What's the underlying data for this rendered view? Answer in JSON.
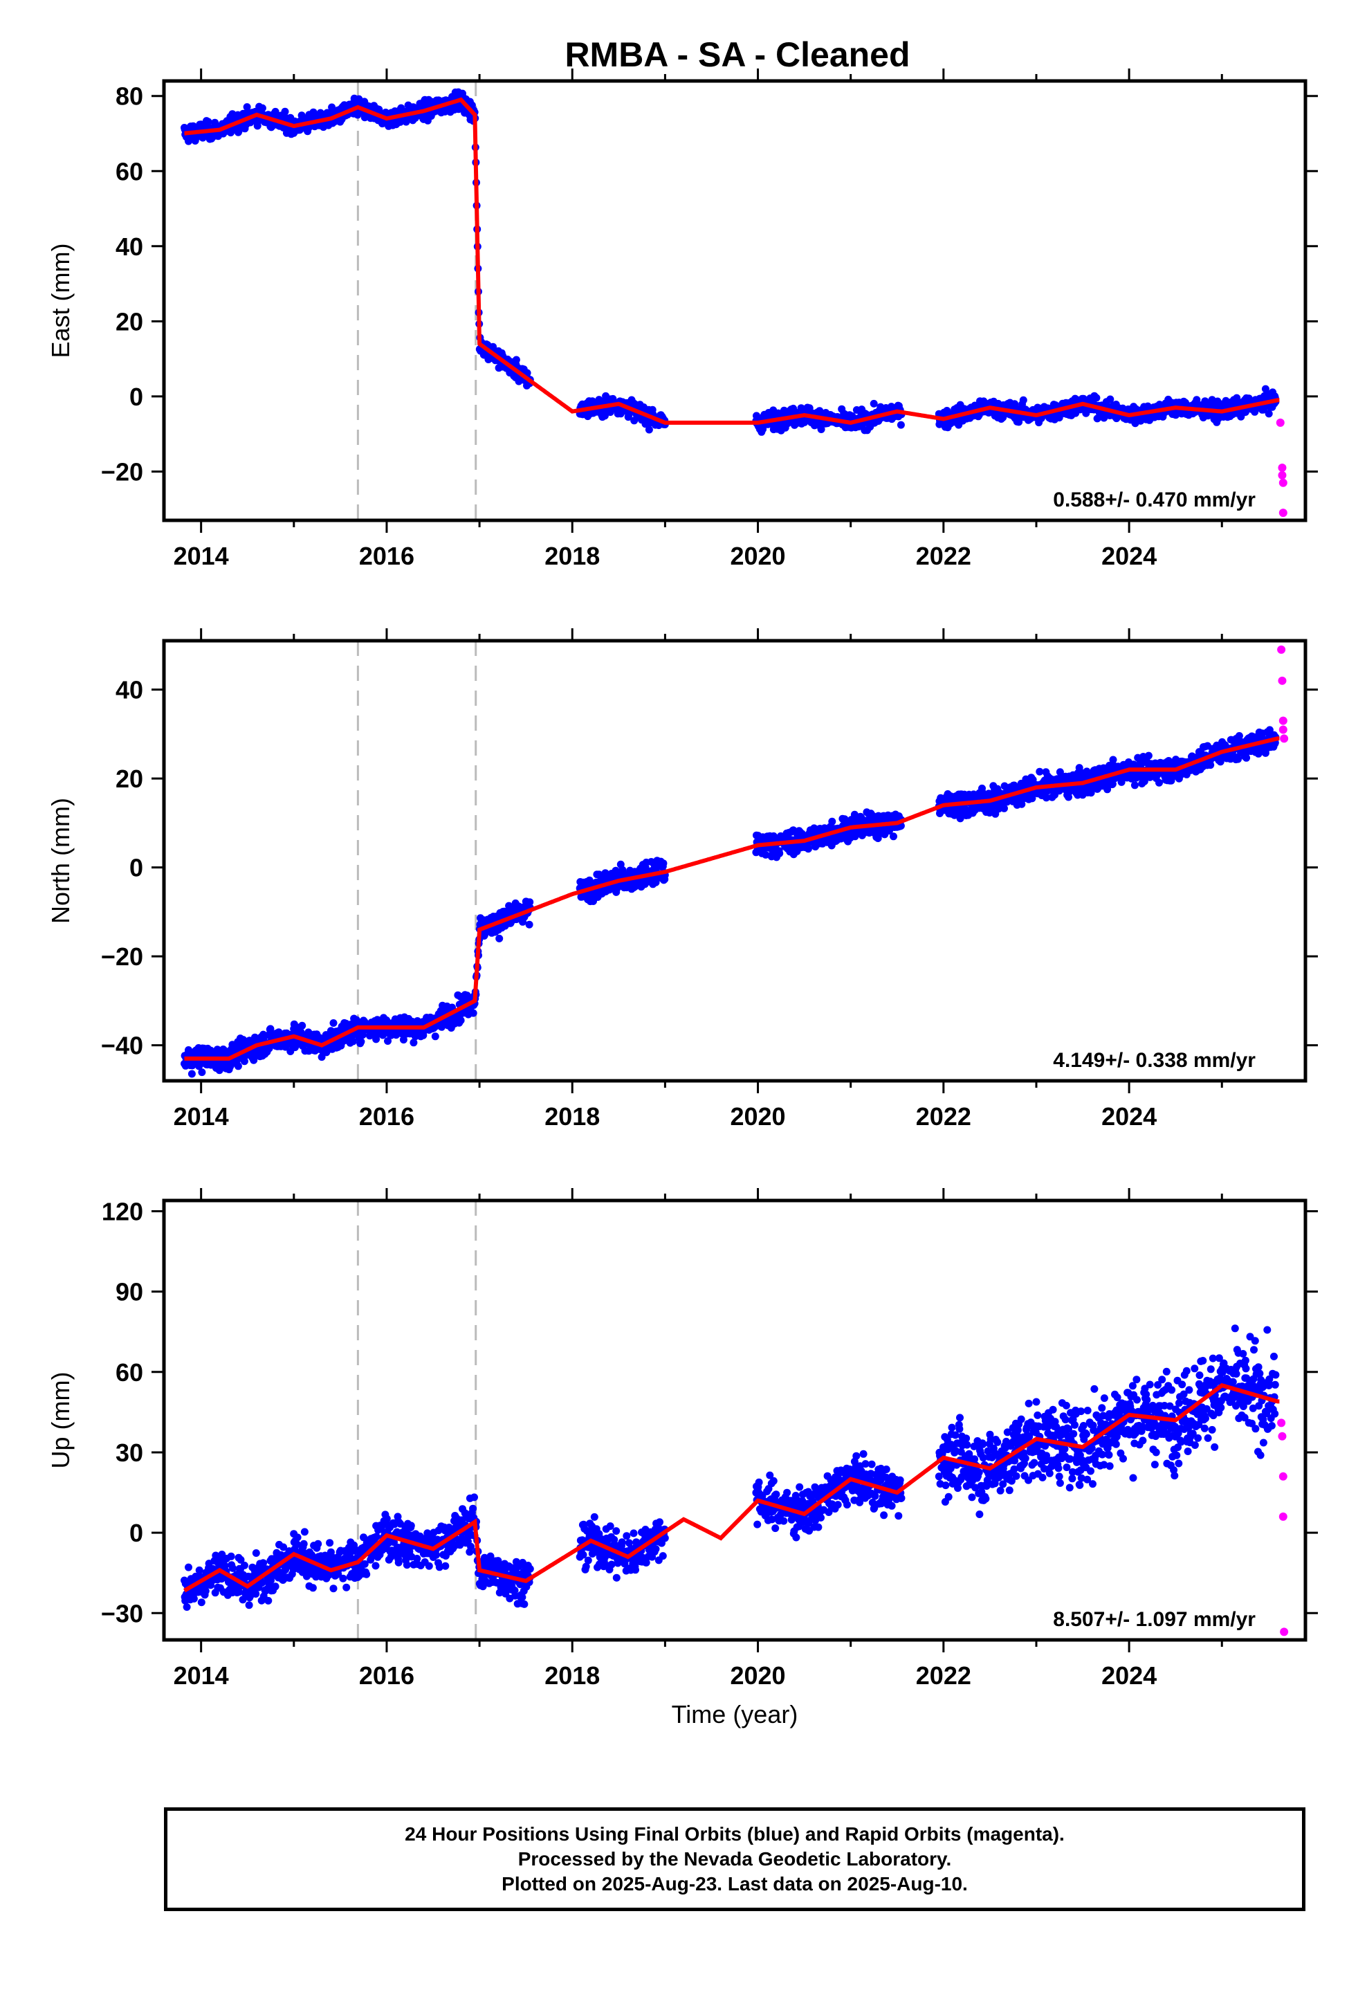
{
  "chart_data": [
    {
      "type": "scatter",
      "title": "RMBA  - SA - Cleaned",
      "xlabel": "",
      "ylabel": "East (mm)",
      "xlim": [
        2013.6,
        2025.9
      ],
      "ylim": [
        -33,
        84
      ],
      "xticks": [
        2014,
        2016,
        2018,
        2020,
        2022,
        2024
      ],
      "yticks": [
        -20,
        0,
        20,
        40,
        60,
        80
      ],
      "annotation": "0.588+/- 0.470 mm/yr",
      "breaks": [
        2015.69,
        2016.96
      ],
      "colors": {
        "final": "#0000ff",
        "rapid": "#ff00ff",
        "model": "#ff0000",
        "breaks": "#bbbbbb"
      },
      "series": [
        {
          "color_key": "final",
          "approx_points": [
            [
              2013.8,
              70
            ],
            [
              2014.2,
              71
            ],
            [
              2014.6,
              75
            ],
            [
              2015.0,
              72
            ],
            [
              2015.4,
              74
            ],
            [
              2015.69,
              77
            ],
            [
              2016.0,
              74
            ],
            [
              2016.4,
              76
            ],
            [
              2016.8,
              79
            ],
            [
              2016.95,
              75
            ],
            [
              2017.0,
              14
            ],
            [
              2017.5,
              5
            ],
            [
              2018.0,
              -4
            ],
            [
              2018.5,
              -2
            ],
            [
              2019.0,
              -7
            ],
            [
              2020.0,
              -7
            ],
            [
              2020.5,
              -5
            ],
            [
              2021.0,
              -7
            ],
            [
              2021.5,
              -4
            ],
            [
              2022.0,
              -6
            ],
            [
              2022.5,
              -3
            ],
            [
              2023.0,
              -5
            ],
            [
              2023.5,
              -2
            ],
            [
              2024.0,
              -5
            ],
            [
              2024.5,
              -3
            ],
            [
              2025.0,
              -4
            ],
            [
              2025.6,
              -1
            ]
          ]
        },
        {
          "color_key": "rapid",
          "points": [
            [
              2025.63,
              -7
            ],
            [
              2025.65,
              -19
            ],
            [
              2025.65,
              -21
            ],
            [
              2025.66,
              -23
            ],
            [
              2025.66,
              -31
            ]
          ]
        }
      ]
    },
    {
      "type": "scatter",
      "xlabel": "",
      "ylabel": "North (mm)",
      "xlim": [
        2013.6,
        2025.9
      ],
      "ylim": [
        -48,
        51
      ],
      "xticks": [
        2014,
        2016,
        2018,
        2020,
        2022,
        2024
      ],
      "yticks": [
        -40,
        -20,
        0,
        20,
        40
      ],
      "annotation": "4.149+/- 0.338 mm/yr",
      "breaks": [
        2015.69,
        2016.96
      ],
      "series": [
        {
          "color_key": "final",
          "approx_points": [
            [
              2013.8,
              -43
            ],
            [
              2014.3,
              -43
            ],
            [
              2014.6,
              -40
            ],
            [
              2015.0,
              -38
            ],
            [
              2015.3,
              -40
            ],
            [
              2015.69,
              -36
            ],
            [
              2016.0,
              -36
            ],
            [
              2016.4,
              -36
            ],
            [
              2016.95,
              -30
            ],
            [
              2017.0,
              -14
            ],
            [
              2017.5,
              -10
            ],
            [
              2018.0,
              -6
            ],
            [
              2018.5,
              -3
            ],
            [
              2019.0,
              -1
            ],
            [
              2020.0,
              5
            ],
            [
              2020.5,
              6
            ],
            [
              2021.0,
              9
            ],
            [
              2021.5,
              10
            ],
            [
              2022.0,
              14
            ],
            [
              2022.5,
              15
            ],
            [
              2023.0,
              18
            ],
            [
              2023.5,
              19
            ],
            [
              2024.0,
              22
            ],
            [
              2024.5,
              22
            ],
            [
              2025.0,
              26
            ],
            [
              2025.6,
              29
            ]
          ]
        },
        {
          "color_key": "rapid",
          "points": [
            [
              2025.64,
              49
            ],
            [
              2025.65,
              42
            ],
            [
              2025.66,
              33
            ],
            [
              2025.66,
              31
            ],
            [
              2025.67,
              29
            ]
          ]
        }
      ]
    },
    {
      "type": "scatter",
      "xlabel": "Time (year)",
      "ylabel": "Up (mm)",
      "xlim": [
        2013.6,
        2025.9
      ],
      "ylim": [
        -40,
        124
      ],
      "xticks": [
        2014,
        2016,
        2018,
        2020,
        2022,
        2024
      ],
      "yticks": [
        -30,
        0,
        30,
        60,
        90,
        120
      ],
      "annotation": "8.507+/- 1.097 mm/yr",
      "breaks": [
        2015.69,
        2016.96
      ],
      "series": [
        {
          "color_key": "final",
          "approx_points": [
            [
              2013.8,
              -22
            ],
            [
              2014.2,
              -14
            ],
            [
              2014.5,
              -20
            ],
            [
              2015.0,
              -8
            ],
            [
              2015.4,
              -14
            ],
            [
              2015.69,
              -11
            ],
            [
              2016.0,
              -1
            ],
            [
              2016.5,
              -6
            ],
            [
              2016.95,
              4
            ],
            [
              2017.0,
              -14
            ],
            [
              2017.5,
              -18
            ],
            [
              2018.2,
              -3
            ],
            [
              2018.6,
              -9
            ],
            [
              2019.2,
              5
            ],
            [
              2019.6,
              -2
            ],
            [
              2020.0,
              12
            ],
            [
              2020.5,
              7
            ],
            [
              2021.0,
              20
            ],
            [
              2021.5,
              15
            ],
            [
              2022.0,
              28
            ],
            [
              2022.5,
              24
            ],
            [
              2023.0,
              35
            ],
            [
              2023.5,
              32
            ],
            [
              2024.0,
              44
            ],
            [
              2024.5,
              42
            ],
            [
              2025.0,
              55
            ],
            [
              2025.6,
              49
            ]
          ]
        },
        {
          "color_key": "rapid",
          "points": [
            [
              2025.64,
              41
            ],
            [
              2025.65,
              36
            ],
            [
              2025.66,
              21
            ],
            [
              2025.66,
              6
            ],
            [
              2025.67,
              -37
            ]
          ]
        }
      ]
    }
  ],
  "footer": {
    "line1": "24 Hour Positions Using Final Orbits (blue) and Rapid Orbits (magenta).",
    "line2": "Processed by the Nevada Geodetic Laboratory.",
    "line3": "Plotted on 2025-Aug-23. Last data on 2025-Aug-10."
  }
}
